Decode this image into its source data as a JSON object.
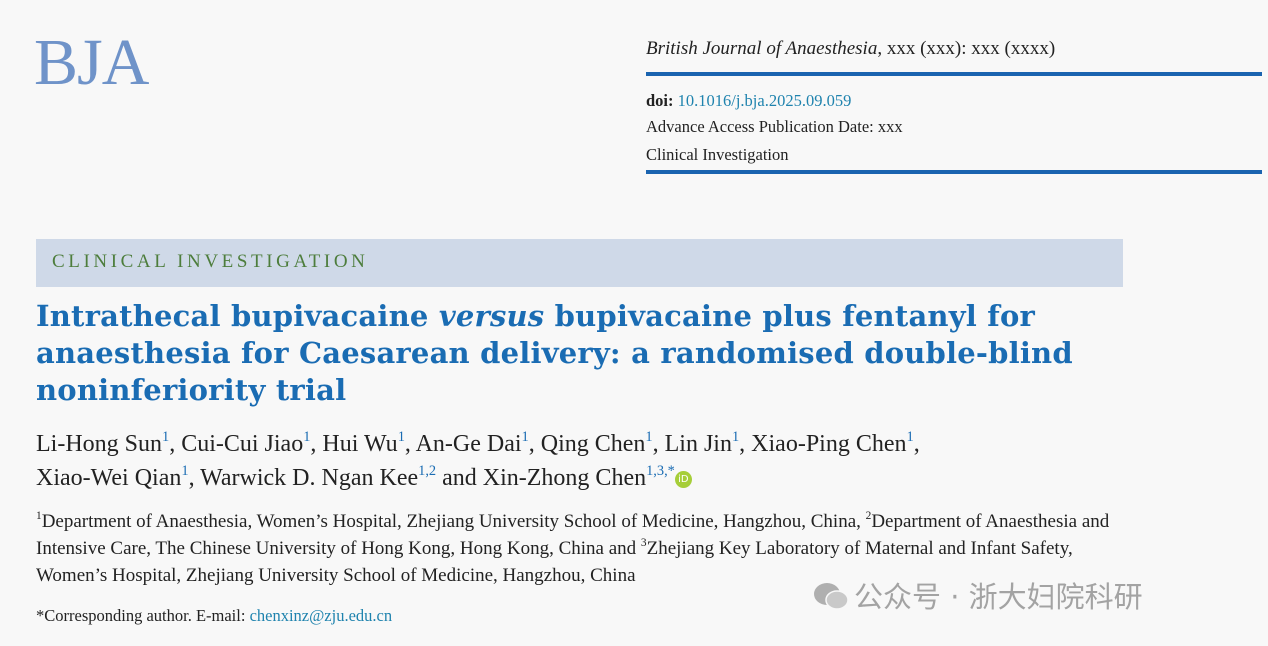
{
  "logo": "BJA",
  "header": {
    "journal_italic": "British Journal of Anaesthesia",
    "journal_rest": ", xxx (xxx): xxx (xxxx)",
    "doi_label": "doi:",
    "doi": "10.1016/j.bja.2025.09.059",
    "advance_access": "Advance Access Publication Date: xxx",
    "section": "Clinical Investigation"
  },
  "banner": "CLINICAL INVESTIGATION",
  "title": {
    "part1": "Intrathecal bupivacaine ",
    "italic": "versus",
    "part2": " bupivacaine plus fentanyl for anaesthesia for Caesarean delivery: a randomised double-blind noninferiority trial"
  },
  "authors": [
    {
      "name": "Li-Hong Sun",
      "sup": "1"
    },
    {
      "name": "Cui-Cui Jiao",
      "sup": "1"
    },
    {
      "name": "Hui Wu",
      "sup": "1"
    },
    {
      "name": "An-Ge Dai",
      "sup": "1"
    },
    {
      "name": "Qing Chen",
      "sup": "1"
    },
    {
      "name": "Lin Jin",
      "sup": "1"
    },
    {
      "name": "Xiao-Ping Chen",
      "sup": "1"
    },
    {
      "name": "Xiao-Wei Qian",
      "sup": "1"
    },
    {
      "name": "Warwick D. Ngan Kee",
      "sup": "1,2"
    },
    {
      "name": "Xin-Zhong Chen",
      "sup": "1,3,*"
    }
  ],
  "authors_and": "and",
  "orcid_icon": "iD",
  "affiliations": [
    {
      "sup": "1",
      "text": "Department of Anaesthesia, Women’s Hospital, Zhejiang University School of Medicine, Hangzhou, China, "
    },
    {
      "sup": "2",
      "text": "Department of Anaesthesia and Intensive Care, The Chinese University of Hong Kong, Hong Kong, China and "
    },
    {
      "sup": "3",
      "text": "Zhejiang Key Laboratory of Maternal and Infant Safety, Women’s Hospital, Zhejiang University School of Medicine, Hangzhou, China"
    }
  ],
  "corresponding": {
    "label": "*Corresponding author. E-mail: ",
    "email": "chenxinz@zju.edu.cn"
  },
  "watermark": "公众号 · 浙大妇院科研",
  "colors": {
    "title": "#1a6cb3",
    "rule": "#1a64b0",
    "banner": "#cfd9e8",
    "banner_text": "#4d7d3c",
    "link": "#1f83ae"
  }
}
